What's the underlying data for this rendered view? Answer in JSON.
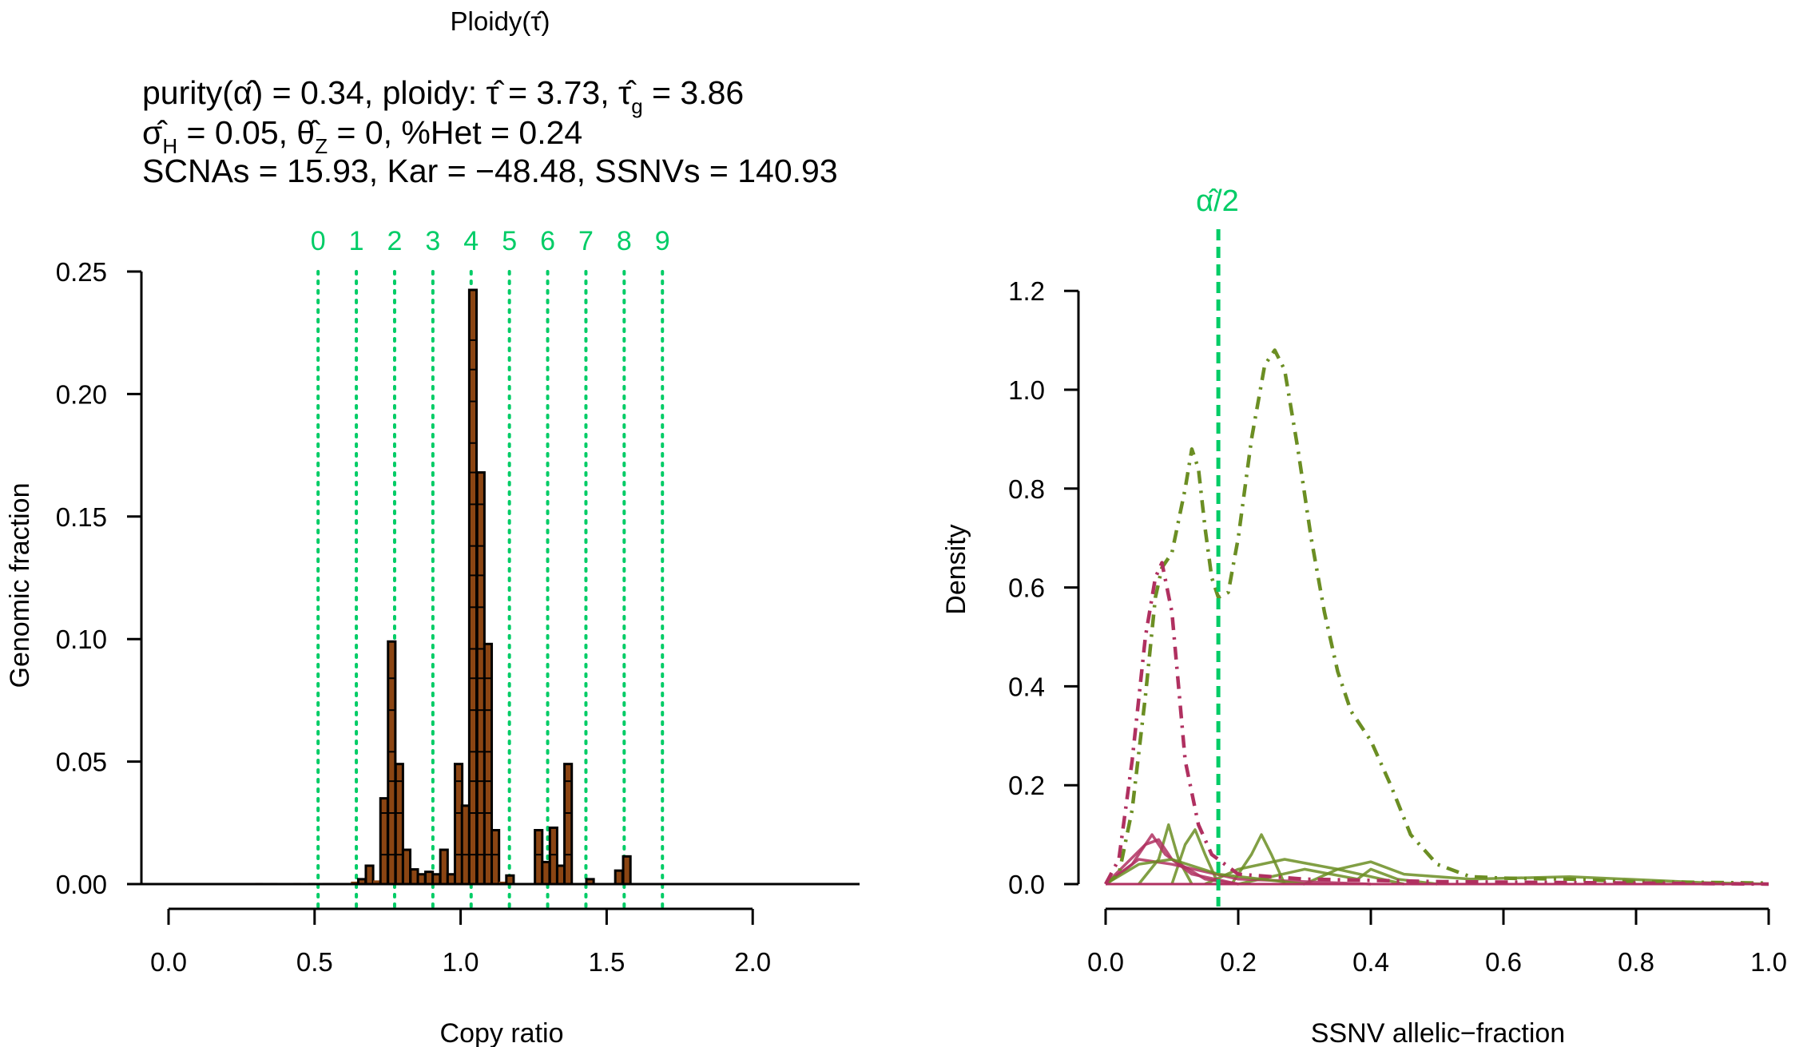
{
  "colors": {
    "bars": "#8B4513",
    "copy_lines": "#00CC66",
    "olive": "#6B8E23",
    "magenta": "#B03060",
    "alpha_line": "#00CC66"
  },
  "header": {
    "title": "Ploidy(τ̂)",
    "line1": {
      "a": "purity(α̂) = 0.34, ploidy: τ̂ = 3.73, τ̂",
      "sub": "g",
      "b": " = 3.86"
    },
    "line2": {
      "a": "σ̂",
      "sub1": "H",
      "b": " = 0.05, θ̂",
      "sub2": "Z",
      "c": " = 0, %Het = 0.24"
    },
    "line3": "SCNAs = 15.93, Kar = −48.48, SSNVs = 140.93"
  },
  "chart_data": [
    {
      "type": "bar",
      "xlabel": "Copy ratio",
      "ylabel": "Genomic fraction",
      "xlim": [
        0,
        2.0
      ],
      "ylim": [
        0,
        0.25
      ],
      "xticks": [
        "0.0",
        "0.5",
        "1.0",
        "1.5",
        "2.0"
      ],
      "yticks": [
        "0.00",
        "0.05",
        "0.10",
        "0.15",
        "0.20",
        "0.25"
      ],
      "bin_width": 0.025,
      "bars": [
        {
          "x": 0.31,
          "y": 0.0005
        },
        {
          "x": 0.36,
          "y": 0.0005
        },
        {
          "x": 0.44,
          "y": 0.0005
        },
        {
          "x": 0.49,
          "y": 0.0005
        },
        {
          "x": 0.54,
          "y": 0.0005
        },
        {
          "x": 0.637,
          "y": 0.001
        },
        {
          "x": 0.662,
          "y": 0.002
        },
        {
          "x": 0.688,
          "y": 0.0075
        },
        {
          "x": 0.713,
          "y": 0.0015
        },
        {
          "x": 0.738,
          "y": 0.035
        },
        {
          "x": 0.764,
          "y": 0.099
        },
        {
          "x": 0.79,
          "y": 0.049
        },
        {
          "x": 0.815,
          "y": 0.014
        },
        {
          "x": 0.841,
          "y": 0.006
        },
        {
          "x": 0.866,
          "y": 0.004
        },
        {
          "x": 0.892,
          "y": 0.005
        },
        {
          "x": 0.917,
          "y": 0.004
        },
        {
          "x": 0.943,
          "y": 0.014
        },
        {
          "x": 0.968,
          "y": 0.004
        },
        {
          "x": 0.993,
          "y": 0.049
        },
        {
          "x": 1.017,
          "y": 0.032
        },
        {
          "x": 1.042,
          "y": 0.2425
        },
        {
          "x": 1.069,
          "y": 0.168
        },
        {
          "x": 1.094,
          "y": 0.098
        },
        {
          "x": 1.119,
          "y": 0.022
        },
        {
          "x": 1.143,
          "y": 0.001
        },
        {
          "x": 1.169,
          "y": 0.0035
        },
        {
          "x": 1.267,
          "y": 0.022
        },
        {
          "x": 1.292,
          "y": 0.009
        },
        {
          "x": 1.318,
          "y": 0.023
        },
        {
          "x": 1.343,
          "y": 0.0075
        },
        {
          "x": 1.368,
          "y": 0.049
        },
        {
          "x": 1.443,
          "y": 0.002
        },
        {
          "x": 1.542,
          "y": 0.0055
        },
        {
          "x": 1.569,
          "y": 0.0113
        }
      ],
      "copy_number_lines": [
        {
          "label": "0",
          "x": 0.512
        },
        {
          "label": "1",
          "x": 0.643
        },
        {
          "label": "2",
          "x": 0.774
        },
        {
          "label": "3",
          "x": 0.905
        },
        {
          "label": "4",
          "x": 1.036
        },
        {
          "label": "5",
          "x": 1.167
        },
        {
          "label": "6",
          "x": 1.298
        },
        {
          "label": "7",
          "x": 1.429
        },
        {
          "label": "8",
          "x": 1.56
        },
        {
          "label": "9",
          "x": 1.691
        }
      ]
    },
    {
      "type": "line",
      "xlabel": "SSNV allelic−fraction",
      "ylabel": "Density",
      "xlim": [
        0,
        1.0
      ],
      "ylim": [
        0,
        1.2
      ],
      "xticks": [
        "0.0",
        "0.2",
        "0.4",
        "0.6",
        "0.8",
        "1.0"
      ],
      "yticks": [
        "0.0",
        "0.2",
        "0.4",
        "0.6",
        "0.8",
        "1.0",
        "1.2"
      ],
      "annotation": {
        "label": "α̂/2",
        "x": 0.17
      },
      "series": [
        {
          "color": "olive",
          "style": "dashdot",
          "points": [
            [
              0,
              0
            ],
            [
              0.02,
              0.02
            ],
            [
              0.04,
              0.15
            ],
            [
              0.06,
              0.38
            ],
            [
              0.075,
              0.58
            ],
            [
              0.085,
              0.64
            ],
            [
              0.1,
              0.67
            ],
            [
              0.12,
              0.8
            ],
            [
              0.13,
              0.88
            ],
            [
              0.14,
              0.84
            ],
            [
              0.15,
              0.72
            ],
            [
              0.16,
              0.62
            ],
            [
              0.17,
              0.58
            ],
            [
              0.185,
              0.59
            ],
            [
              0.2,
              0.7
            ],
            [
              0.22,
              0.9
            ],
            [
              0.24,
              1.05
            ],
            [
              0.255,
              1.08
            ],
            [
              0.27,
              1.04
            ],
            [
              0.29,
              0.88
            ],
            [
              0.31,
              0.7
            ],
            [
              0.33,
              0.55
            ],
            [
              0.35,
              0.43
            ],
            [
              0.37,
              0.35
            ],
            [
              0.4,
              0.29
            ],
            [
              0.43,
              0.2
            ],
            [
              0.46,
              0.1
            ],
            [
              0.5,
              0.04
            ],
            [
              0.55,
              0.015
            ],
            [
              0.6,
              0.012
            ],
            [
              0.7,
              0.01
            ],
            [
              0.8,
              0.005
            ],
            [
              1.0,
              0.002
            ]
          ]
        },
        {
          "color": "magenta",
          "style": "dashdot",
          "points": [
            [
              0,
              0
            ],
            [
              0.02,
              0.05
            ],
            [
              0.04,
              0.25
            ],
            [
              0.06,
              0.5
            ],
            [
              0.075,
              0.62
            ],
            [
              0.085,
              0.65
            ],
            [
              0.1,
              0.55
            ],
            [
              0.11,
              0.4
            ],
            [
              0.12,
              0.25
            ],
            [
              0.14,
              0.12
            ],
            [
              0.16,
              0.06
            ],
            [
              0.2,
              0.02
            ],
            [
              0.3,
              0.01
            ],
            [
              0.5,
              0.005
            ],
            [
              1.0,
              0
            ]
          ]
        },
        {
          "color": "olive",
          "style": "solid",
          "points": [
            [
              0.05,
              0
            ],
            [
              0.08,
              0.05
            ],
            [
              0.095,
              0.12
            ],
            [
              0.11,
              0.05
            ],
            [
              0.13,
              0
            ]
          ]
        },
        {
          "color": "olive",
          "style": "solid",
          "points": [
            [
              0.1,
              0
            ],
            [
              0.12,
              0.08
            ],
            [
              0.135,
              0.11
            ],
            [
              0.15,
              0.06
            ],
            [
              0.17,
              0
            ]
          ]
        },
        {
          "color": "olive",
          "style": "solid",
          "points": [
            [
              0.19,
              0
            ],
            [
              0.22,
              0.06
            ],
            [
              0.235,
              0.1
            ],
            [
              0.25,
              0.06
            ],
            [
              0.27,
              0
            ]
          ]
        },
        {
          "color": "olive",
          "style": "solid",
          "points": [
            [
              0.15,
              0
            ],
            [
              0.2,
              0.03
            ],
            [
              0.27,
              0.05
            ],
            [
              0.35,
              0.03
            ],
            [
              0.45,
              0
            ]
          ]
        },
        {
          "color": "olive",
          "style": "solid",
          "points": [
            [
              0.3,
              0
            ],
            [
              0.35,
              0.03
            ],
            [
              0.4,
              0.045
            ],
            [
              0.45,
              0.02
            ],
            [
              0.55,
              0.01
            ],
            [
              0.7,
              0.015
            ],
            [
              0.9,
              0.003
            ],
            [
              1.0,
              0
            ]
          ]
        },
        {
          "color": "olive",
          "style": "solid",
          "points": [
            [
              0.2,
              0
            ],
            [
              0.3,
              0.03
            ],
            [
              0.38,
              0.01
            ],
            [
              0.4,
              0.03
            ],
            [
              0.44,
              0.01
            ],
            [
              0.5,
              0
            ]
          ]
        },
        {
          "color": "magenta",
          "style": "solid",
          "points": [
            [
              0,
              0
            ],
            [
              0.03,
              0.04
            ],
            [
              0.06,
              0.08
            ],
            [
              0.08,
              0.09
            ],
            [
              0.1,
              0.05
            ],
            [
              0.15,
              0.01
            ],
            [
              0.2,
              0
            ]
          ]
        },
        {
          "color": "magenta",
          "style": "solid",
          "points": [
            [
              0,
              0
            ],
            [
              0.04,
              0.04
            ],
            [
              0.07,
              0.1
            ],
            [
              0.09,
              0.06
            ],
            [
              0.13,
              0.02
            ],
            [
              0.2,
              0
            ]
          ]
        },
        {
          "color": "magenta",
          "style": "solid",
          "points": [
            [
              0,
              0
            ],
            [
              0.05,
              0.05
            ],
            [
              0.1,
              0.04
            ],
            [
              0.2,
              0.01
            ],
            [
              0.4,
              0
            ]
          ]
        },
        {
          "color": "olive",
          "style": "solid",
          "points": [
            [
              0,
              0
            ],
            [
              0.05,
              0.04
            ],
            [
              0.1,
              0.05
            ],
            [
              0.17,
              0.02
            ],
            [
              0.3,
              0
            ]
          ]
        }
      ]
    }
  ]
}
